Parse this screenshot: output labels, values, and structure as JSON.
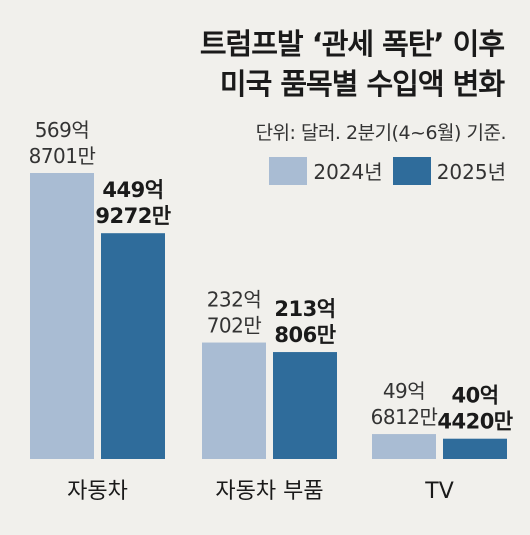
{
  "title_lines": [
    "트럼프발 ‘관세 폭탄’ 이후",
    "미국 품목별 수입액 변화"
  ],
  "note": "단위: 달러. 2분기(4~6월) 기준.",
  "colors": {
    "series_2024": "#a9bcd3",
    "series_2025": "#2f6c9b",
    "background": "#f1f0ec"
  },
  "chart_data": {
    "type": "bar",
    "categories": [
      "자동차",
      "자동차 부품",
      "TV"
    ],
    "series": [
      {
        "name": "2024년",
        "values": [
          56987010000,
          23207020000,
          4968120000
        ],
        "labels": [
          "569억\n8701만",
          "232억\n702만",
          "49억\n6812만"
        ]
      },
      {
        "name": "2025년",
        "values": [
          44992720000,
          21308060000,
          4044200000
        ],
        "labels": [
          "449억\n9272만",
          "213억\n806만",
          "40억\n4420만"
        ]
      }
    ],
    "legend": "top-right",
    "grid": false
  }
}
